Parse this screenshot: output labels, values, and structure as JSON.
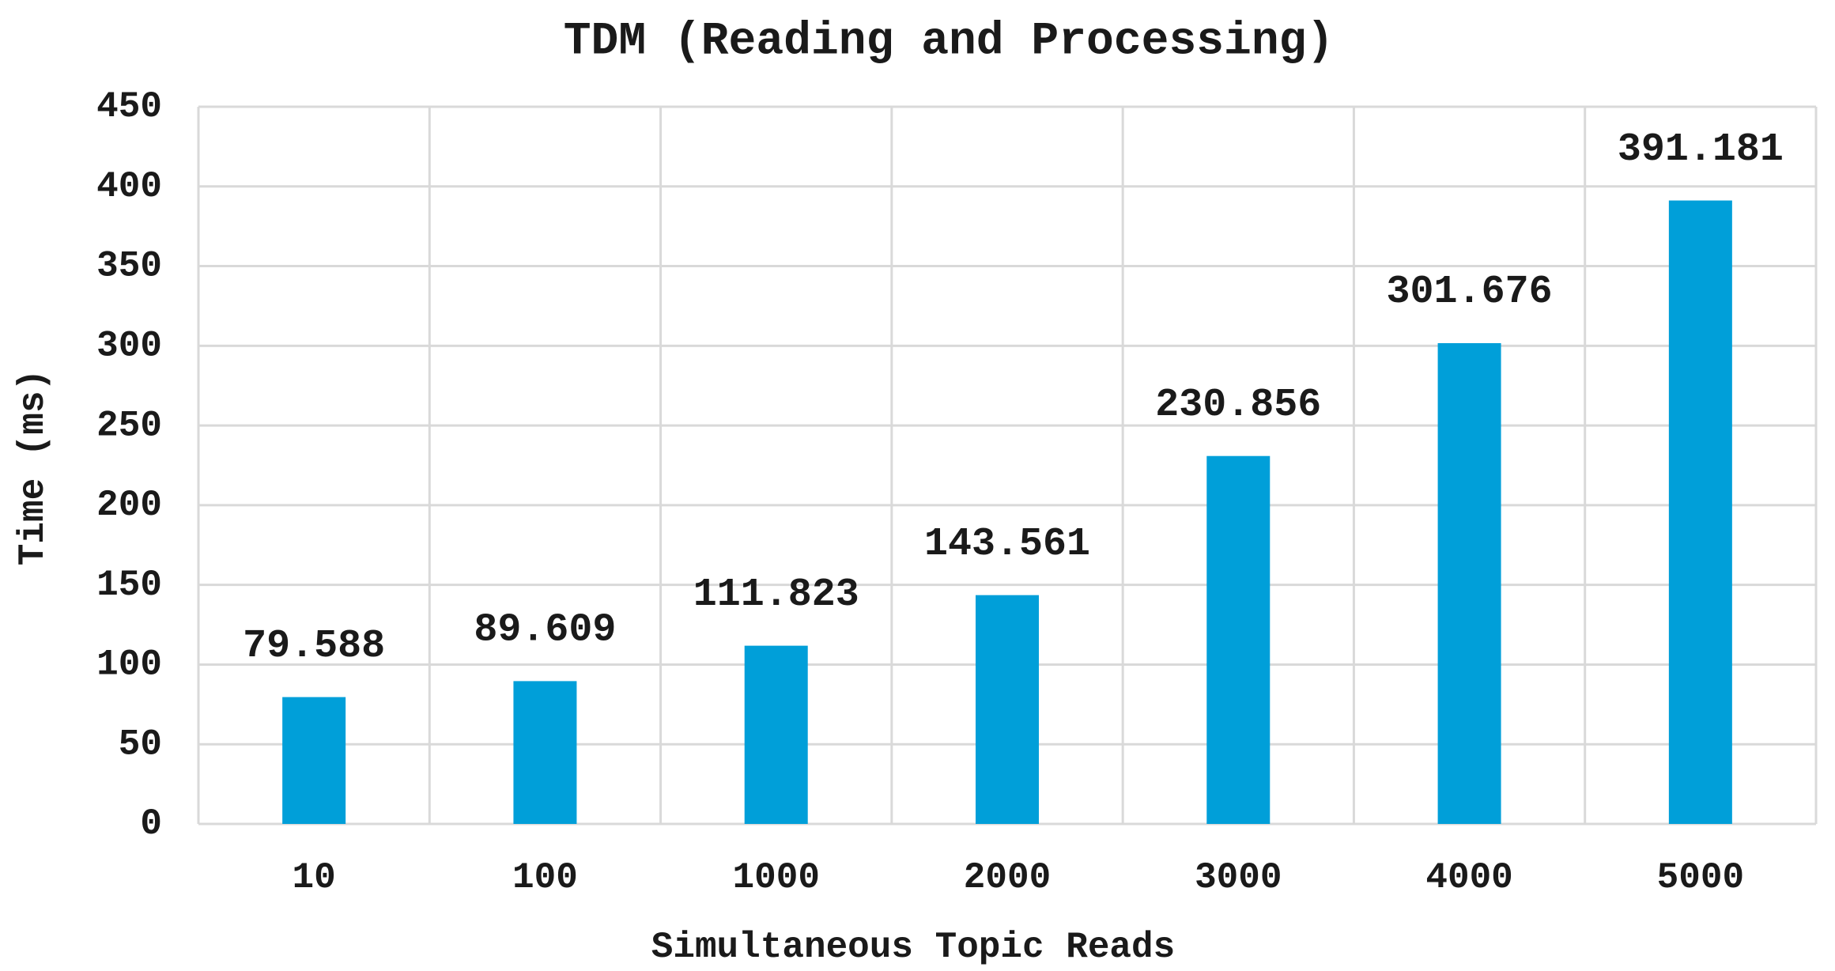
{
  "chart_data": {
    "type": "bar",
    "title": "TDM (Reading and Processing)",
    "x_label": "Simultaneous Topic Reads",
    "y_label": "Time (ms)",
    "categories": [
      "10",
      "100",
      "1000",
      "2000",
      "3000",
      "4000",
      "5000"
    ],
    "values": [
      79.588,
      89.609,
      111.823,
      143.561,
      230.856,
      301.676,
      391.181
    ],
    "color": "#009fd9",
    "ylim": [
      0,
      450
    ],
    "yticks": [
      0,
      50,
      100,
      150,
      200,
      250,
      300,
      350,
      400,
      450
    ],
    "grid": true
  }
}
